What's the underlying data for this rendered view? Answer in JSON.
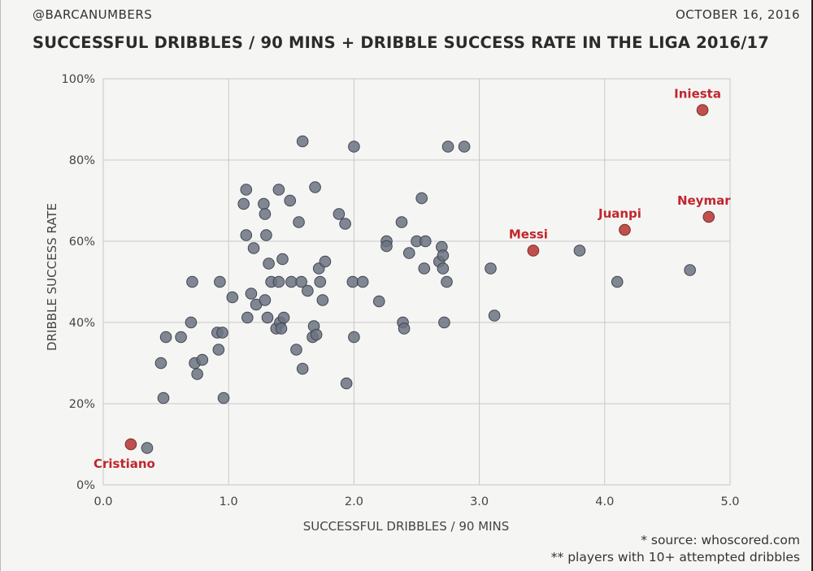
{
  "header": {
    "handle": "@BARCANUMBERS",
    "date": "OCTOBER 16, 2016",
    "title": "SUCCESSFUL DRIBBLES / 90 MINS + DRIBBLE SUCCESS RATE IN THE LIGA 2016/17"
  },
  "footer": {
    "source": "* source: whoscored.com",
    "note": "** players with 10+ attempted dribbles"
  },
  "colors": {
    "point": "#6b7280",
    "highlight": "#c0504d",
    "label": "#c0262d",
    "grid": "#c8c8c8"
  },
  "chart_data": {
    "type": "scatter",
    "title": "SUCCESSFUL DRIBBLES / 90 MINS + DRIBBLE SUCCESS RATE IN THE LIGA 2016/17",
    "xlabel": "SUCCESSFUL DRIBBLES / 90 MINS",
    "ylabel": "DRIBBLE SUCCESS RATE",
    "xlim": [
      0,
      5
    ],
    "ylim": [
      0,
      100
    ],
    "x_ticks": [
      0,
      1,
      2,
      3,
      4,
      5
    ],
    "x_tick_labels": [
      "0.0",
      "1.0",
      "2.0",
      "3.0",
      "4.0",
      "5.0"
    ],
    "y_ticks": [
      0,
      20,
      40,
      60,
      80,
      100
    ],
    "y_tick_labels": [
      "0%",
      "20%",
      "40%",
      "60%",
      "80%",
      "100%"
    ],
    "grid": true,
    "highlighted": [
      {
        "name": "Iniesta",
        "x": 4.78,
        "y": 92.3,
        "label_pos": "above"
      },
      {
        "name": "Neymar",
        "x": 4.83,
        "y": 66.0,
        "label_pos": "above"
      },
      {
        "name": "Juanpi",
        "x": 4.16,
        "y": 62.8,
        "label_pos": "above"
      },
      {
        "name": "Messi",
        "x": 3.43,
        "y": 57.7,
        "label_pos": "above"
      },
      {
        "name": "Cristiano",
        "x": 0.22,
        "y": 10.0,
        "label_pos": "below"
      }
    ],
    "players": [
      {
        "x": 0.35,
        "y": 9.1
      },
      {
        "x": 0.46,
        "y": 30.0
      },
      {
        "x": 0.48,
        "y": 21.4
      },
      {
        "x": 0.5,
        "y": 36.4
      },
      {
        "x": 0.62,
        "y": 36.4
      },
      {
        "x": 0.7,
        "y": 40.0
      },
      {
        "x": 0.71,
        "y": 50.0
      },
      {
        "x": 0.73,
        "y": 30.0
      },
      {
        "x": 0.75,
        "y": 27.3
      },
      {
        "x": 0.79,
        "y": 30.8
      },
      {
        "x": 0.91,
        "y": 37.5
      },
      {
        "x": 0.92,
        "y": 33.3
      },
      {
        "x": 0.93,
        "y": 50.0
      },
      {
        "x": 0.95,
        "y": 37.5
      },
      {
        "x": 0.96,
        "y": 21.4
      },
      {
        "x": 1.03,
        "y": 46.2
      },
      {
        "x": 1.12,
        "y": 69.2
      },
      {
        "x": 1.14,
        "y": 72.7
      },
      {
        "x": 1.14,
        "y": 61.5
      },
      {
        "x": 1.15,
        "y": 41.2
      },
      {
        "x": 1.18,
        "y": 47.1
      },
      {
        "x": 1.2,
        "y": 58.3
      },
      {
        "x": 1.22,
        "y": 44.4
      },
      {
        "x": 1.28,
        "y": 69.2
      },
      {
        "x": 1.29,
        "y": 66.7
      },
      {
        "x": 1.29,
        "y": 45.5
      },
      {
        "x": 1.3,
        "y": 61.5
      },
      {
        "x": 1.31,
        "y": 41.2
      },
      {
        "x": 1.32,
        "y": 54.5
      },
      {
        "x": 1.34,
        "y": 50.0
      },
      {
        "x": 1.38,
        "y": 38.5
      },
      {
        "x": 1.4,
        "y": 50.0
      },
      {
        "x": 1.4,
        "y": 72.7
      },
      {
        "x": 1.41,
        "y": 40.0
      },
      {
        "x": 1.42,
        "y": 38.5
      },
      {
        "x": 1.43,
        "y": 55.6
      },
      {
        "x": 1.44,
        "y": 41.2
      },
      {
        "x": 1.49,
        "y": 70.0
      },
      {
        "x": 1.5,
        "y": 50.0
      },
      {
        "x": 1.54,
        "y": 33.3
      },
      {
        "x": 1.56,
        "y": 64.7
      },
      {
        "x": 1.58,
        "y": 50.0
      },
      {
        "x": 1.59,
        "y": 84.6
      },
      {
        "x": 1.59,
        "y": 28.6
      },
      {
        "x": 1.63,
        "y": 47.8
      },
      {
        "x": 1.67,
        "y": 36.4
      },
      {
        "x": 1.68,
        "y": 39.1
      },
      {
        "x": 1.69,
        "y": 73.3
      },
      {
        "x": 1.7,
        "y": 37.0
      },
      {
        "x": 1.72,
        "y": 53.3
      },
      {
        "x": 1.73,
        "y": 50.0
      },
      {
        "x": 1.75,
        "y": 45.5
      },
      {
        "x": 1.77,
        "y": 55.0
      },
      {
        "x": 1.88,
        "y": 66.7
      },
      {
        "x": 1.93,
        "y": 64.3
      },
      {
        "x": 1.94,
        "y": 25.0
      },
      {
        "x": 1.99,
        "y": 50.0
      },
      {
        "x": 2.0,
        "y": 83.3
      },
      {
        "x": 2.0,
        "y": 36.4
      },
      {
        "x": 2.07,
        "y": 50.0
      },
      {
        "x": 2.2,
        "y": 45.2
      },
      {
        "x": 2.26,
        "y": 60.0
      },
      {
        "x": 2.26,
        "y": 58.8
      },
      {
        "x": 2.38,
        "y": 64.7
      },
      {
        "x": 2.39,
        "y": 40.0
      },
      {
        "x": 2.4,
        "y": 38.5
      },
      {
        "x": 2.44,
        "y": 57.1
      },
      {
        "x": 2.5,
        "y": 60.0
      },
      {
        "x": 2.54,
        "y": 70.6
      },
      {
        "x": 2.56,
        "y": 53.3
      },
      {
        "x": 2.57,
        "y": 60.0
      },
      {
        "x": 2.68,
        "y": 55.0
      },
      {
        "x": 2.7,
        "y": 58.6
      },
      {
        "x": 2.71,
        "y": 56.5
      },
      {
        "x": 2.71,
        "y": 53.3
      },
      {
        "x": 2.72,
        "y": 40.0
      },
      {
        "x": 2.74,
        "y": 50.0
      },
      {
        "x": 2.75,
        "y": 83.3
      },
      {
        "x": 2.88,
        "y": 83.3
      },
      {
        "x": 3.09,
        "y": 53.3
      },
      {
        "x": 3.12,
        "y": 41.7
      },
      {
        "x": 3.8,
        "y": 57.7
      },
      {
        "x": 4.1,
        "y": 50.0
      },
      {
        "x": 4.68,
        "y": 52.9
      }
    ]
  }
}
